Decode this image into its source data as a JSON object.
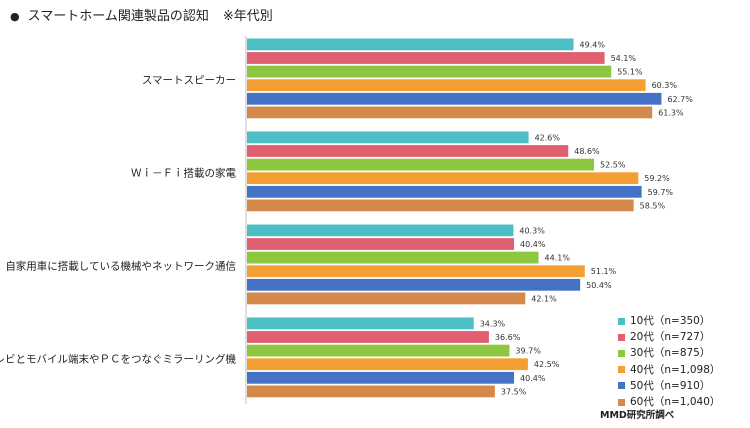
{
  "title": {
    "bullet": "●",
    "main": "スマートホーム関連製品の認知",
    "sub": "※年代別"
  },
  "source": "MMD研究所調べ",
  "chart_data": {
    "type": "bar",
    "orientation": "horizontal",
    "categories": [
      "スマートスピーカー",
      "Ｗｉ－Ｆｉ搭載の家電",
      "自家用車に搭載している機械やネットワーク通信",
      "テレビとモバイル端末やＰＣをつなぐミラーリング機"
    ],
    "series": [
      {
        "name": "10代（n=350）",
        "color": "#4BBFC4",
        "values": [
          49.4,
          42.6,
          40.3,
          34.3
        ],
        "labels": [
          "49.4%",
          "42.6%",
          "40.3%",
          "34.3%"
        ]
      },
      {
        "name": "20代（n=727）",
        "color": "#E05F71",
        "values": [
          54.1,
          48.6,
          40.4,
          36.6
        ],
        "labels": [
          "54.1%",
          "48.6%",
          "40.4%",
          "36.6%"
        ]
      },
      {
        "name": "30代（n=875）",
        "color": "#8DC63F",
        "values": [
          55.1,
          52.5,
          44.1,
          39.7
        ],
        "labels": [
          "55.1%",
          "52.5%",
          "44.1%",
          "39.7%"
        ]
      },
      {
        "name": "40代（n=1,098）",
        "color": "#F2A033",
        "values": [
          60.3,
          59.2,
          51.1,
          42.5
        ],
        "labels": [
          "60.3%",
          "59.2%",
          "51.1%",
          "42.5%"
        ]
      },
      {
        "name": "50代（n=910）",
        "color": "#4472C4",
        "values": [
          62.7,
          59.7,
          50.4,
          40.4
        ],
        "labels": [
          "62.7%",
          "59.7%",
          "50.4%",
          "40.4%"
        ]
      },
      {
        "name": "60代（n=1,040）",
        "color": "#D4894A",
        "values": [
          61.3,
          58.5,
          42.1,
          37.5
        ],
        "labels": [
          "61.3%",
          "58.5%",
          "42.1%",
          "37.5%"
        ]
      }
    ],
    "xlim": [
      0,
      100
    ],
    "legend": "bottom-right",
    "grid": false
  }
}
